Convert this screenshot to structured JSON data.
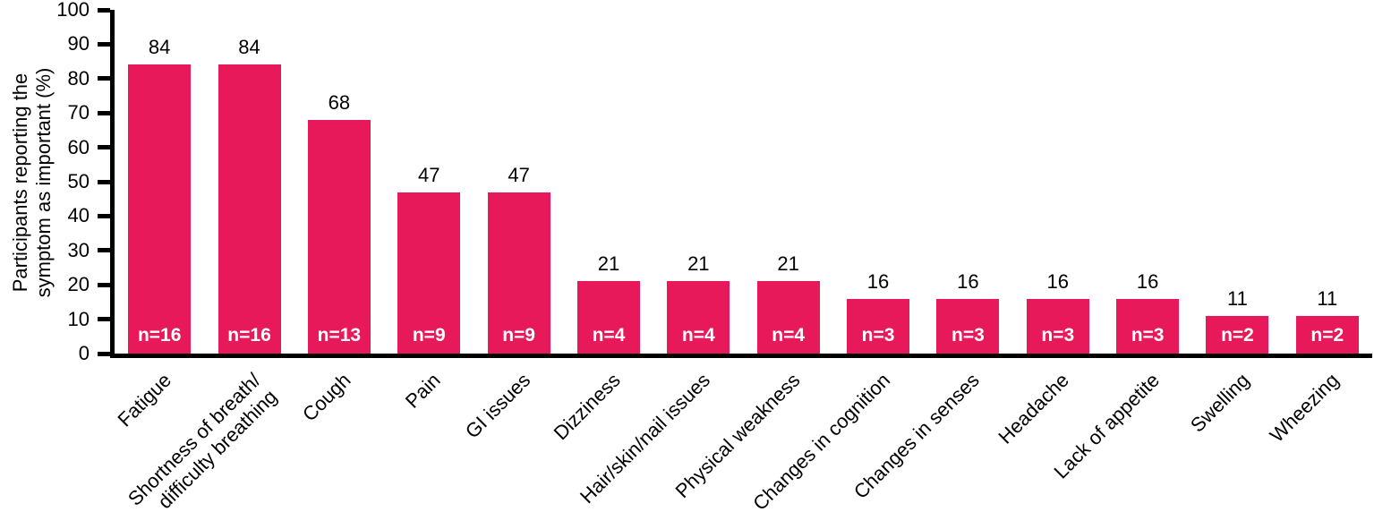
{
  "chart_data": {
    "type": "bar",
    "title": "",
    "xlabel": "",
    "ylabel": "Participants reporting the\nsymptom as important (%)",
    "ylim": [
      0,
      100
    ],
    "yticks": [
      0,
      10,
      20,
      30,
      40,
      50,
      60,
      70,
      80,
      90,
      100
    ],
    "grid": false,
    "legend": "none",
    "bar_color": "#E7195B",
    "axis_color": "#000000",
    "value_label_color": "#000000",
    "n_label_color": "#ffffff",
    "categories": [
      "Fatigue",
      "Shortness of breath/\ndifficulty breathing",
      "Cough",
      "Pain",
      "GI issues",
      "Dizziness",
      "Hair/skin/nail issues",
      "Physical weakness",
      "Changes in cognition",
      "Changes in senses",
      "Headache",
      "Lack of appetite",
      "Swelling",
      "Wheezing"
    ],
    "values": [
      84,
      84,
      68,
      47,
      47,
      21,
      21,
      21,
      16,
      16,
      16,
      16,
      11,
      11
    ],
    "bar_labels": [
      "n=16",
      "n=16",
      "n=13",
      "n=9",
      "n=9",
      "n=4",
      "n=4",
      "n=4",
      "n=3",
      "n=3",
      "n=3",
      "n=3",
      "n=2",
      "n=2"
    ]
  }
}
